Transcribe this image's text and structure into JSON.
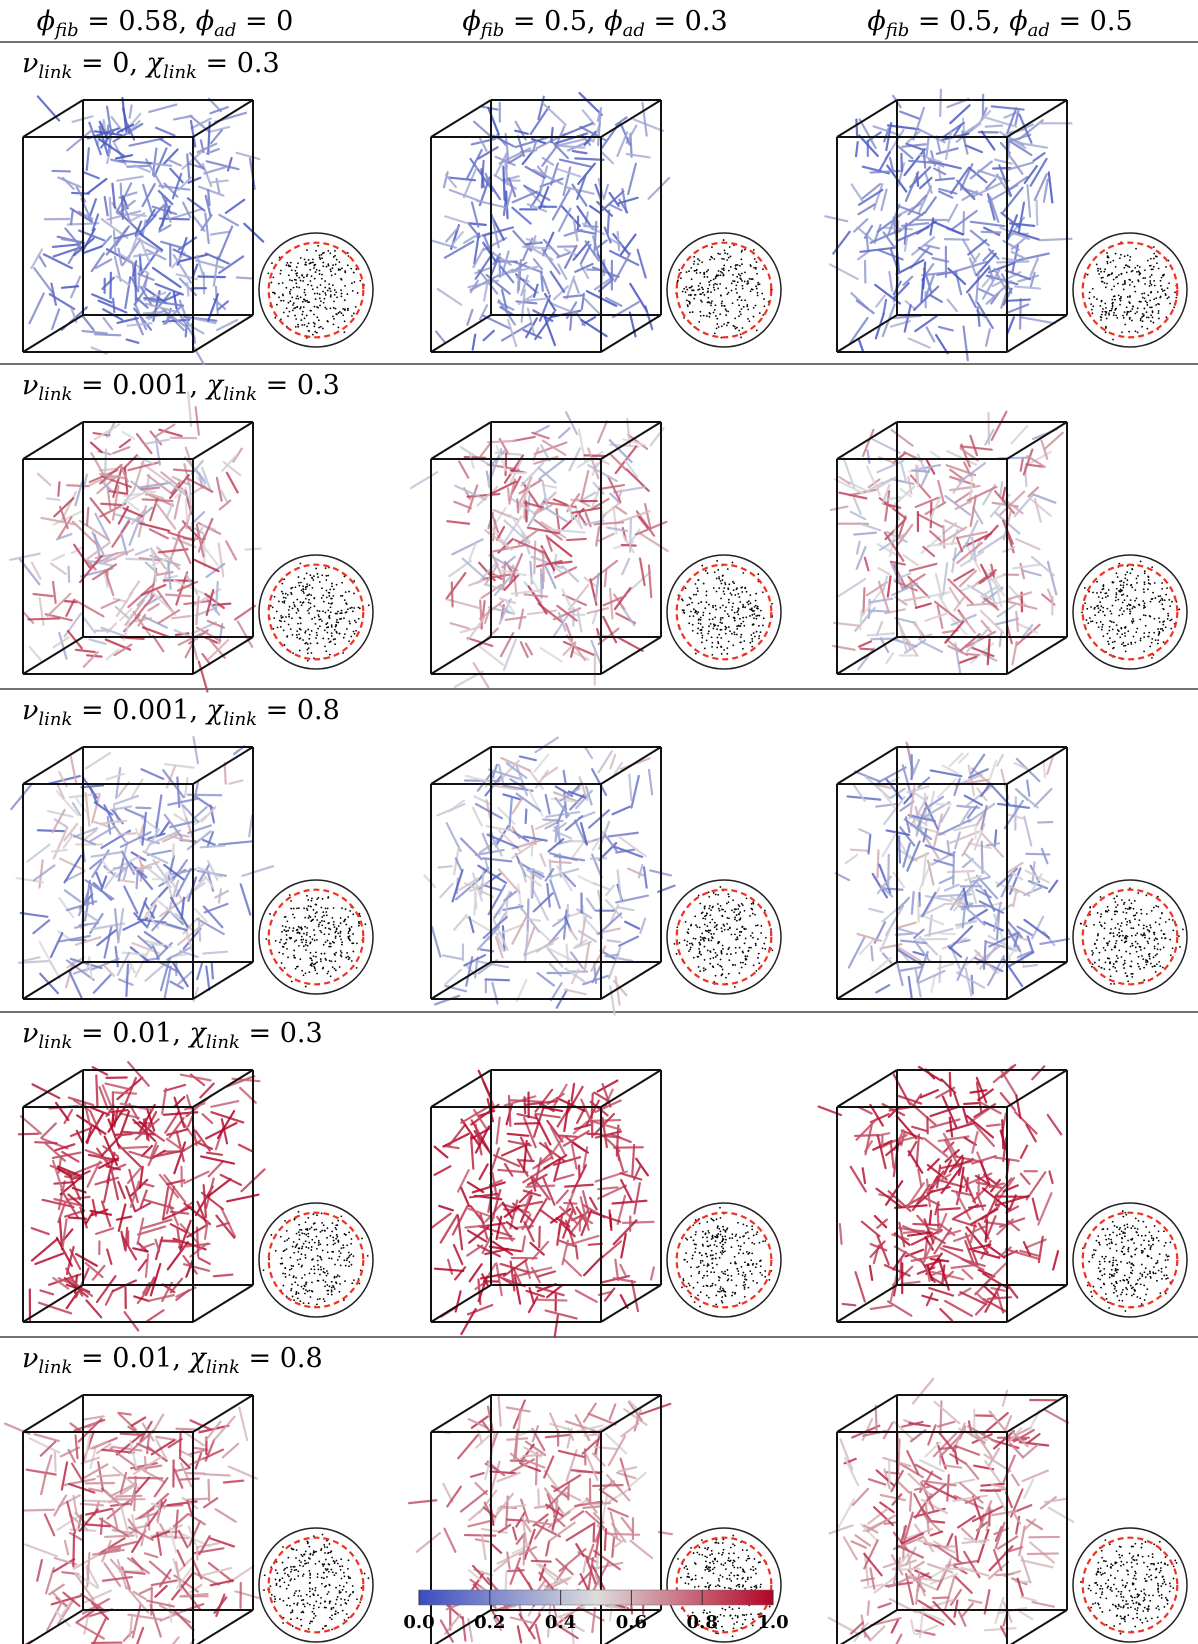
{
  "header": {
    "columns": [
      [
        {
          "symbol": "ϕ",
          "subscript": "fib",
          "rest": " = 0.58, "
        },
        {
          "symbol": "ϕ",
          "subscript": "ad",
          "rest": " = 0"
        }
      ],
      [
        {
          "symbol": "ϕ",
          "subscript": "fib",
          "rest": " = 0.5, "
        },
        {
          "symbol": "ϕ",
          "subscript": "ad",
          "rest": " = 0.3"
        }
      ],
      [
        {
          "symbol": "ϕ",
          "subscript": "fib",
          "rest": " = 0.5, "
        },
        {
          "symbol": "ϕ",
          "subscript": "ad",
          "rest": " = 0.5"
        }
      ]
    ]
  },
  "rows": [
    {
      "label": [
        {
          "symbol": "ν",
          "subscript": "link",
          "rest": " = 0, "
        },
        {
          "symbol": "χ",
          "subscript": "link",
          "rest": " = 0.3"
        }
      ]
    },
    {
      "label": [
        {
          "symbol": "ν",
          "subscript": "link",
          "rest": " = 0.001, "
        },
        {
          "symbol": "χ",
          "subscript": "link",
          "rest": " = 0.3"
        }
      ]
    },
    {
      "label": [
        {
          "symbol": "ν",
          "subscript": "link",
          "rest": " = 0.001, "
        },
        {
          "symbol": "χ",
          "subscript": "link",
          "rest": " = 0.8"
        }
      ]
    },
    {
      "label": [
        {
          "symbol": "ν",
          "subscript": "link",
          "rest": " = 0.01, "
        },
        {
          "symbol": "χ",
          "subscript": "link",
          "rest": " = 0.3"
        }
      ]
    },
    {
      "label": [
        {
          "symbol": "ν",
          "subscript": "link",
          "rest": " = 0.01, "
        },
        {
          "symbol": "χ",
          "subscript": "link",
          "rest": " = 0.8"
        }
      ]
    }
  ],
  "colorbar": {
    "range": [
      0,
      1
    ],
    "ticks": [
      {
        "value": 0,
        "label": "0.0"
      },
      {
        "value": 0.2,
        "label": "0.2"
      },
      {
        "value": 0.4,
        "label": "0.4"
      },
      {
        "value": 0.6,
        "label": "0.6"
      },
      {
        "value": 0.8,
        "label": "0.8"
      },
      {
        "value": 1,
        "label": "1.0"
      }
    ]
  }
}
